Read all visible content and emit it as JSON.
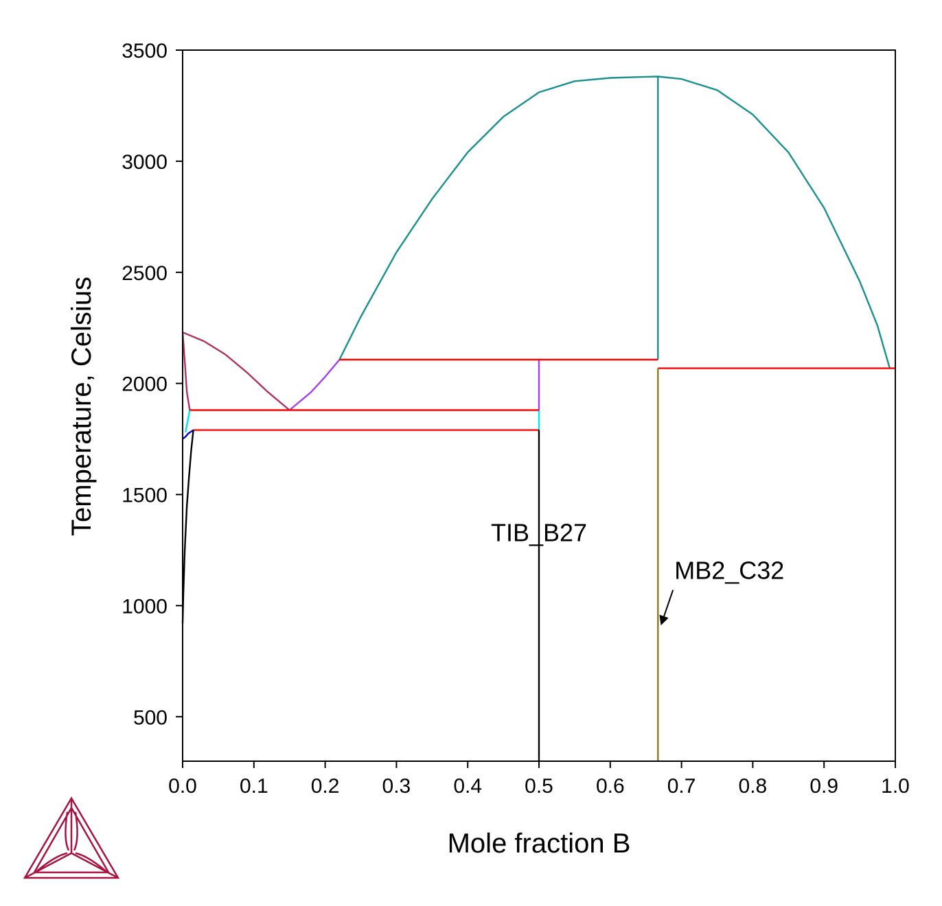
{
  "chart_data": {
    "type": "line",
    "title": "",
    "xlabel": "Mole fraction B",
    "ylabel": "Temperature, Celsius",
    "xlim": [
      0,
      1
    ],
    "ylim": [
      300,
      3500
    ],
    "x_ticks": [
      {
        "value": 0.0,
        "label": "0.0"
      },
      {
        "value": 0.1,
        "label": "0.1"
      },
      {
        "value": 0.2,
        "label": "0.2"
      },
      {
        "value": 0.3,
        "label": "0.3"
      },
      {
        "value": 0.4,
        "label": "0.4"
      },
      {
        "value": 0.5,
        "label": "0.5"
      },
      {
        "value": 0.6,
        "label": "0.6"
      },
      {
        "value": 0.7,
        "label": "0.7"
      },
      {
        "value": 0.8,
        "label": "0.8"
      },
      {
        "value": 0.9,
        "label": "0.9"
      },
      {
        "value": 1.0,
        "label": "1.0"
      }
    ],
    "y_ticks": [
      {
        "value": 500,
        "label": "500"
      },
      {
        "value": 1000,
        "label": "1000"
      },
      {
        "value": 1500,
        "label": "1500"
      },
      {
        "value": 2000,
        "label": "2000"
      },
      {
        "value": 2500,
        "label": "2500"
      },
      {
        "value": 3000,
        "label": "3000"
      },
      {
        "value": 3500,
        "label": "3500"
      }
    ],
    "grid": false,
    "legend": "none",
    "series": [
      {
        "color": "#1a8f8f",
        "x": [
          0.22,
          0.25,
          0.3,
          0.35,
          0.4,
          0.45,
          0.5,
          0.55,
          0.6,
          0.65,
          0.667,
          0.7,
          0.75,
          0.8,
          0.85,
          0.9,
          0.95,
          0.975,
          0.992
        ],
        "y": [
          2107,
          2300,
          2590,
          2830,
          3040,
          3200,
          3310,
          3360,
          3375,
          3380,
          3381,
          3370,
          3320,
          3210,
          3040,
          2790,
          2460,
          2260,
          2070
        ]
      },
      {
        "color": "#1a8f8f",
        "x": [
          0.667,
          0.667
        ],
        "y": [
          2107,
          3381
        ]
      },
      {
        "color": "#b03060",
        "x": [
          0.0,
          0.03,
          0.06,
          0.09,
          0.12,
          0.15
        ],
        "y": [
          2230,
          2190,
          2130,
          2050,
          1960,
          1880
        ]
      },
      {
        "color": "#b03060",
        "x": [
          0.0,
          0.003,
          0.006,
          0.01
        ],
        "y": [
          2230,
          2100,
          1960,
          1880
        ]
      },
      {
        "color": "#a040f0",
        "x": [
          0.15,
          0.18,
          0.2,
          0.22
        ],
        "y": [
          1880,
          1960,
          2030,
          2107
        ]
      },
      {
        "color": "#a040f0",
        "x": [
          0.5,
          0.5
        ],
        "y": [
          1880,
          2107
        ]
      },
      {
        "color": "#00e5ee",
        "x": [
          0.5,
          0.5
        ],
        "y": [
          1790,
          1880
        ]
      },
      {
        "color": "#00e5ee",
        "x": [
          0.01,
          0.007,
          0.004
        ],
        "y": [
          1880,
          1830,
          1780
        ]
      },
      {
        "color": "#ff0000",
        "x": [
          0.22,
          0.667
        ],
        "y": [
          2107,
          2107
        ]
      },
      {
        "color": "#ff0000",
        "x": [
          0.667,
          1.0
        ],
        "y": [
          2068,
          2068
        ]
      },
      {
        "color": "#ff0000",
        "x": [
          0.01,
          0.5
        ],
        "y": [
          1880,
          1880
        ]
      },
      {
        "color": "#ff0000",
        "x": [
          0.015,
          0.5
        ],
        "y": [
          1790,
          1790
        ]
      },
      {
        "color": "#0000cd",
        "x": [
          0.0,
          0.004,
          0.008,
          0.015
        ],
        "y": [
          1750,
          1760,
          1775,
          1790
        ]
      },
      {
        "color": "#000000",
        "x": [
          0.015,
          0.012,
          0.009,
          0.006,
          0.003,
          0.001,
          0.0
        ],
        "y": [
          1790,
          1700,
          1580,
          1450,
          1250,
          1050,
          920
        ]
      },
      {
        "color": "#000000",
        "x": [
          0.5,
          0.5
        ],
        "y": [
          300,
          1790
        ]
      },
      {
        "color": "#8b7a1a",
        "x": [
          0.667,
          0.667
        ],
        "y": [
          300,
          2068
        ]
      }
    ],
    "annotations": [
      {
        "text": "TIB_B27",
        "x": 0.5,
        "y": 1290
      },
      {
        "text": "MB2_C32",
        "x": 0.69,
        "y": 1120,
        "arrow_to": {
          "x": 0.672,
          "y": 920
        }
      }
    ]
  }
}
